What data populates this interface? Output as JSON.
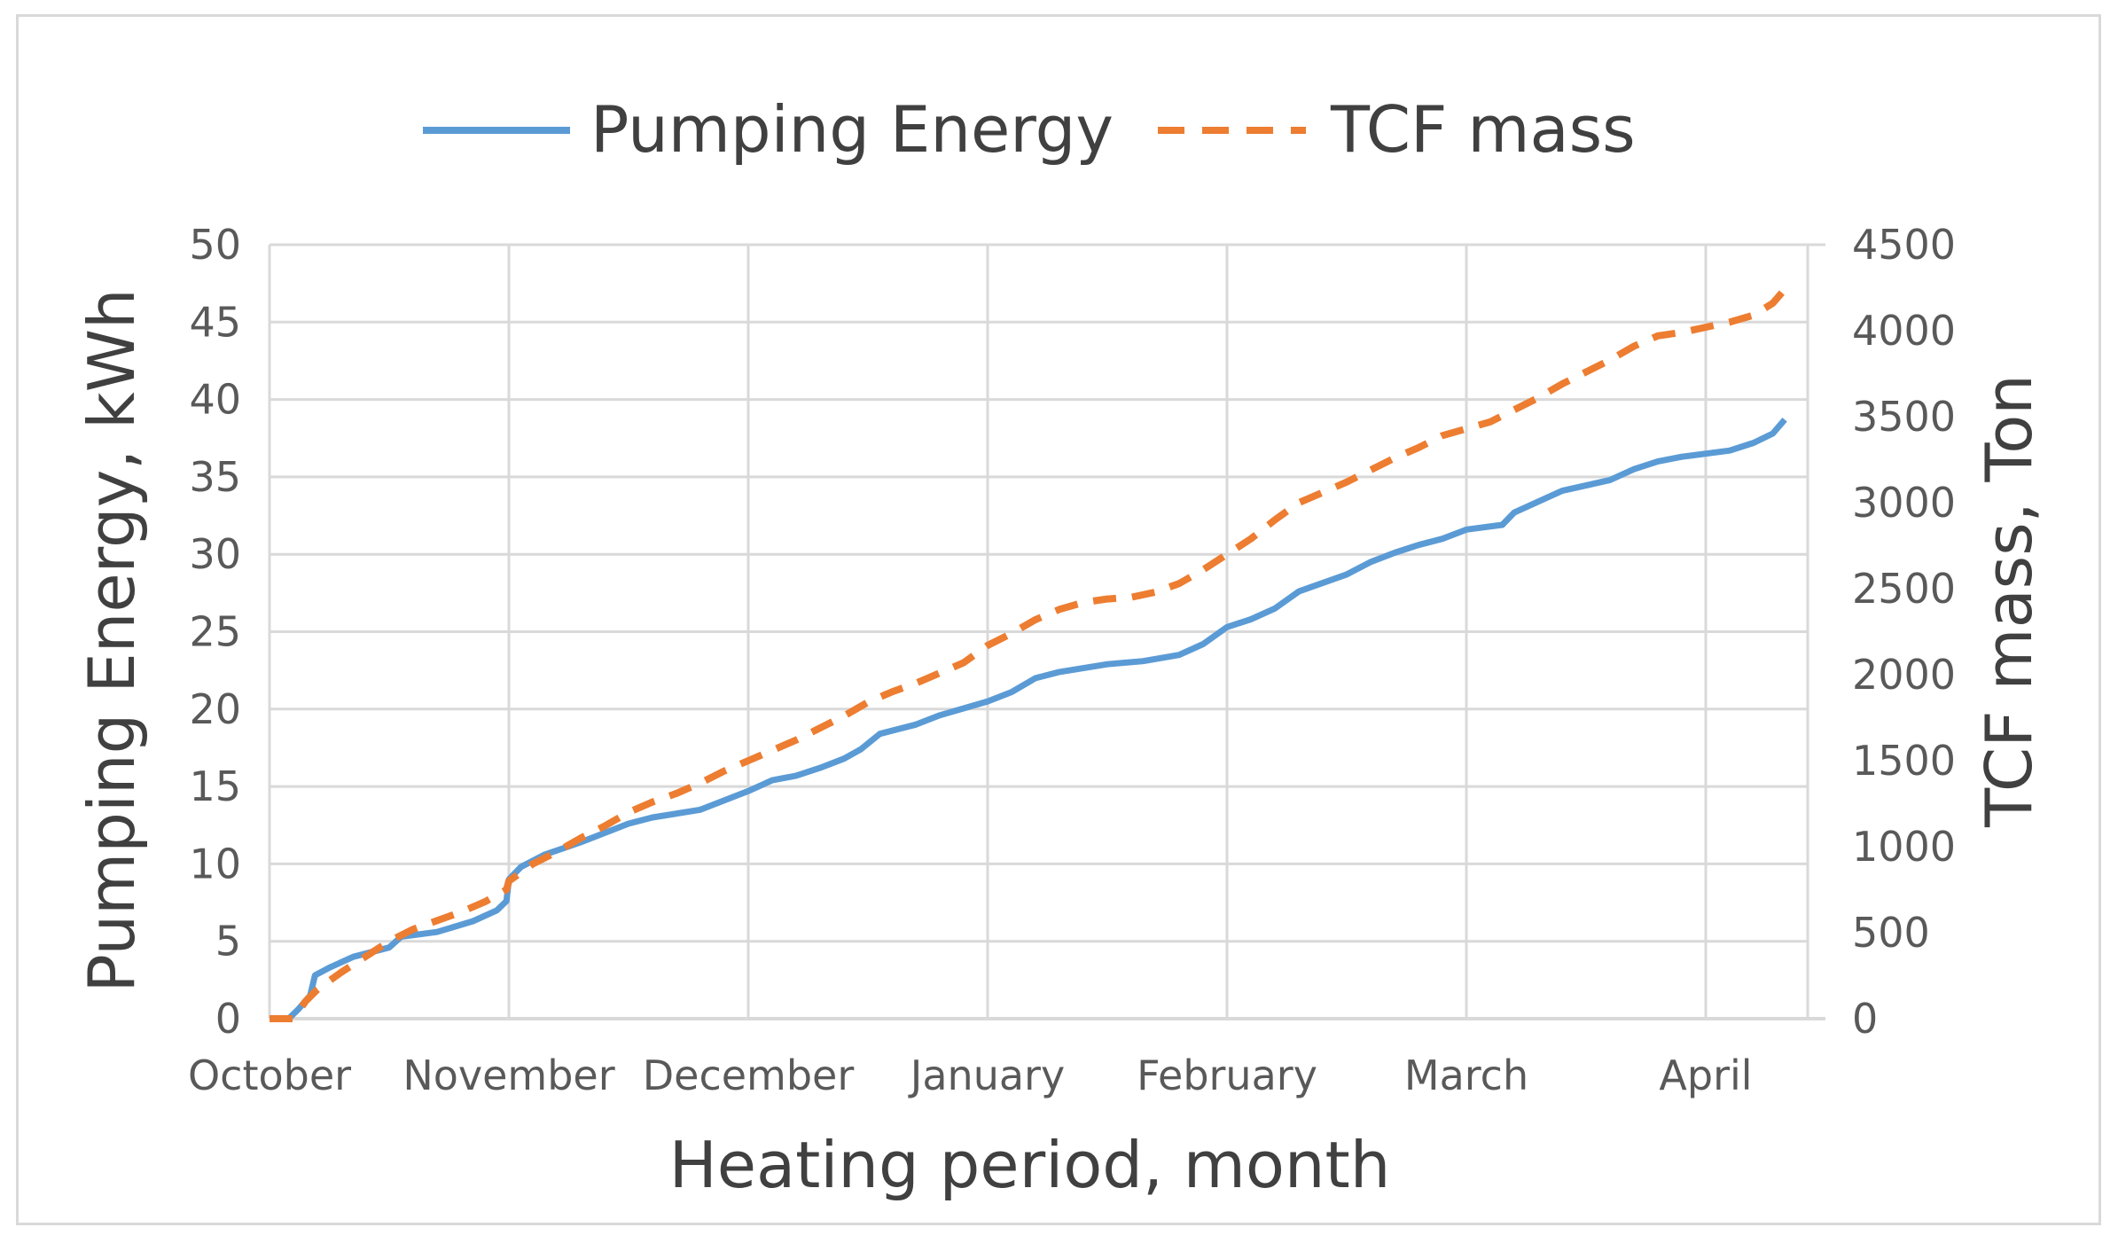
{
  "chart_data": {
    "type": "line",
    "title": "",
    "xlabel": "Heating period, month",
    "ylabel_left": "Pumping Energy, kWh",
    "ylabel_right": "TCF mass, Ton",
    "categories": [
      "October",
      "November",
      "December",
      "January",
      "February",
      "March",
      "April"
    ],
    "x_range": [
      0,
      6.33
    ],
    "ylim_left": [
      0,
      50
    ],
    "ylim_right": [
      0,
      4500
    ],
    "yticks_left": [
      0,
      5,
      10,
      15,
      20,
      25,
      30,
      35,
      40,
      45,
      50
    ],
    "yticks_right": [
      0,
      500,
      1000,
      1500,
      2000,
      2500,
      3000,
      3500,
      4000,
      4500
    ],
    "grid": true,
    "legend_position": "top",
    "series": [
      {
        "name": "Pumping Energy",
        "axis": "left",
        "color": "#5b9bd5",
        "style": "solid",
        "points": [
          [
            0,
            0
          ],
          [
            0.08,
            0
          ],
          [
            0.12,
            0.6
          ],
          [
            0.17,
            1.5
          ],
          [
            0.19,
            2.8
          ],
          [
            0.25,
            3.3
          ],
          [
            0.35,
            4.0
          ],
          [
            0.5,
            4.6
          ],
          [
            0.55,
            5.3
          ],
          [
            0.7,
            5.6
          ],
          [
            0.85,
            6.3
          ],
          [
            0.95,
            7.0
          ],
          [
            0.99,
            7.6
          ],
          [
            1.0,
            9.0
          ],
          [
            1.05,
            9.8
          ],
          [
            1.15,
            10.6
          ],
          [
            1.3,
            11.4
          ],
          [
            1.4,
            12.0
          ],
          [
            1.5,
            12.6
          ],
          [
            1.6,
            13.0
          ],
          [
            1.8,
            13.5
          ],
          [
            2.0,
            14.7
          ],
          [
            2.1,
            15.4
          ],
          [
            2.2,
            15.7
          ],
          [
            2.3,
            16.2
          ],
          [
            2.4,
            16.8
          ],
          [
            2.47,
            17.4
          ],
          [
            2.55,
            18.4
          ],
          [
            2.7,
            19.0
          ],
          [
            2.8,
            19.6
          ],
          [
            3.0,
            20.5
          ],
          [
            3.1,
            21.1
          ],
          [
            3.2,
            22.0
          ],
          [
            3.3,
            22.4
          ],
          [
            3.5,
            22.9
          ],
          [
            3.65,
            23.1
          ],
          [
            3.8,
            23.5
          ],
          [
            3.9,
            24.2
          ],
          [
            4.0,
            25.3
          ],
          [
            4.1,
            25.8
          ],
          [
            4.2,
            26.5
          ],
          [
            4.3,
            27.6
          ],
          [
            4.5,
            28.7
          ],
          [
            4.6,
            29.5
          ],
          [
            4.7,
            30.1
          ],
          [
            4.8,
            30.6
          ],
          [
            4.9,
            31.0
          ],
          [
            5.0,
            31.6
          ],
          [
            5.15,
            31.9
          ],
          [
            5.2,
            32.7
          ],
          [
            5.3,
            33.4
          ],
          [
            5.4,
            34.1
          ],
          [
            5.6,
            34.8
          ],
          [
            5.7,
            35.5
          ],
          [
            5.8,
            36.0
          ],
          [
            5.9,
            36.3
          ],
          [
            6.0,
            36.5
          ],
          [
            6.1,
            36.7
          ],
          [
            6.2,
            37.2
          ],
          [
            6.28,
            37.8
          ],
          [
            6.33,
            38.7
          ]
        ]
      },
      {
        "name": "TCF mass",
        "axis": "right",
        "color": "#ed7d31",
        "style": "dashed",
        "points": [
          [
            0,
            0
          ],
          [
            0.1,
            0
          ],
          [
            0.15,
            100
          ],
          [
            0.2,
            170
          ],
          [
            0.3,
            270
          ],
          [
            0.4,
            360
          ],
          [
            0.5,
            450
          ],
          [
            0.6,
            520
          ],
          [
            0.7,
            570
          ],
          [
            0.8,
            620
          ],
          [
            0.9,
            680
          ],
          [
            0.99,
            750
          ],
          [
            1.0,
            800
          ],
          [
            1.1,
            900
          ],
          [
            1.2,
            970
          ],
          [
            1.3,
            1050
          ],
          [
            1.4,
            1120
          ],
          [
            1.5,
            1200
          ],
          [
            1.6,
            1260
          ],
          [
            1.7,
            1310
          ],
          [
            1.8,
            1370
          ],
          [
            1.9,
            1440
          ],
          [
            2.0,
            1500
          ],
          [
            2.1,
            1560
          ],
          [
            2.2,
            1620
          ],
          [
            2.3,
            1690
          ],
          [
            2.4,
            1760
          ],
          [
            2.5,
            1840
          ],
          [
            2.6,
            1900
          ],
          [
            2.7,
            1950
          ],
          [
            2.8,
            2010
          ],
          [
            2.9,
            2070
          ],
          [
            3.0,
            2170
          ],
          [
            3.1,
            2240
          ],
          [
            3.2,
            2320
          ],
          [
            3.3,
            2380
          ],
          [
            3.4,
            2420
          ],
          [
            3.5,
            2440
          ],
          [
            3.6,
            2450
          ],
          [
            3.7,
            2480
          ],
          [
            3.8,
            2530
          ],
          [
            3.9,
            2610
          ],
          [
            4.0,
            2700
          ],
          [
            4.1,
            2790
          ],
          [
            4.2,
            2900
          ],
          [
            4.3,
            3000
          ],
          [
            4.4,
            3060
          ],
          [
            4.5,
            3120
          ],
          [
            4.6,
            3190
          ],
          [
            4.7,
            3260
          ],
          [
            4.8,
            3320
          ],
          [
            4.9,
            3390
          ],
          [
            5.0,
            3430
          ],
          [
            5.1,
            3470
          ],
          [
            5.2,
            3540
          ],
          [
            5.3,
            3610
          ],
          [
            5.4,
            3690
          ],
          [
            5.5,
            3760
          ],
          [
            5.6,
            3830
          ],
          [
            5.7,
            3910
          ],
          [
            5.8,
            3970
          ],
          [
            5.9,
            3990
          ],
          [
            6.0,
            4020
          ],
          [
            6.1,
            4050
          ],
          [
            6.2,
            4090
          ],
          [
            6.28,
            4160
          ],
          [
            6.33,
            4240
          ]
        ]
      }
    ]
  }
}
